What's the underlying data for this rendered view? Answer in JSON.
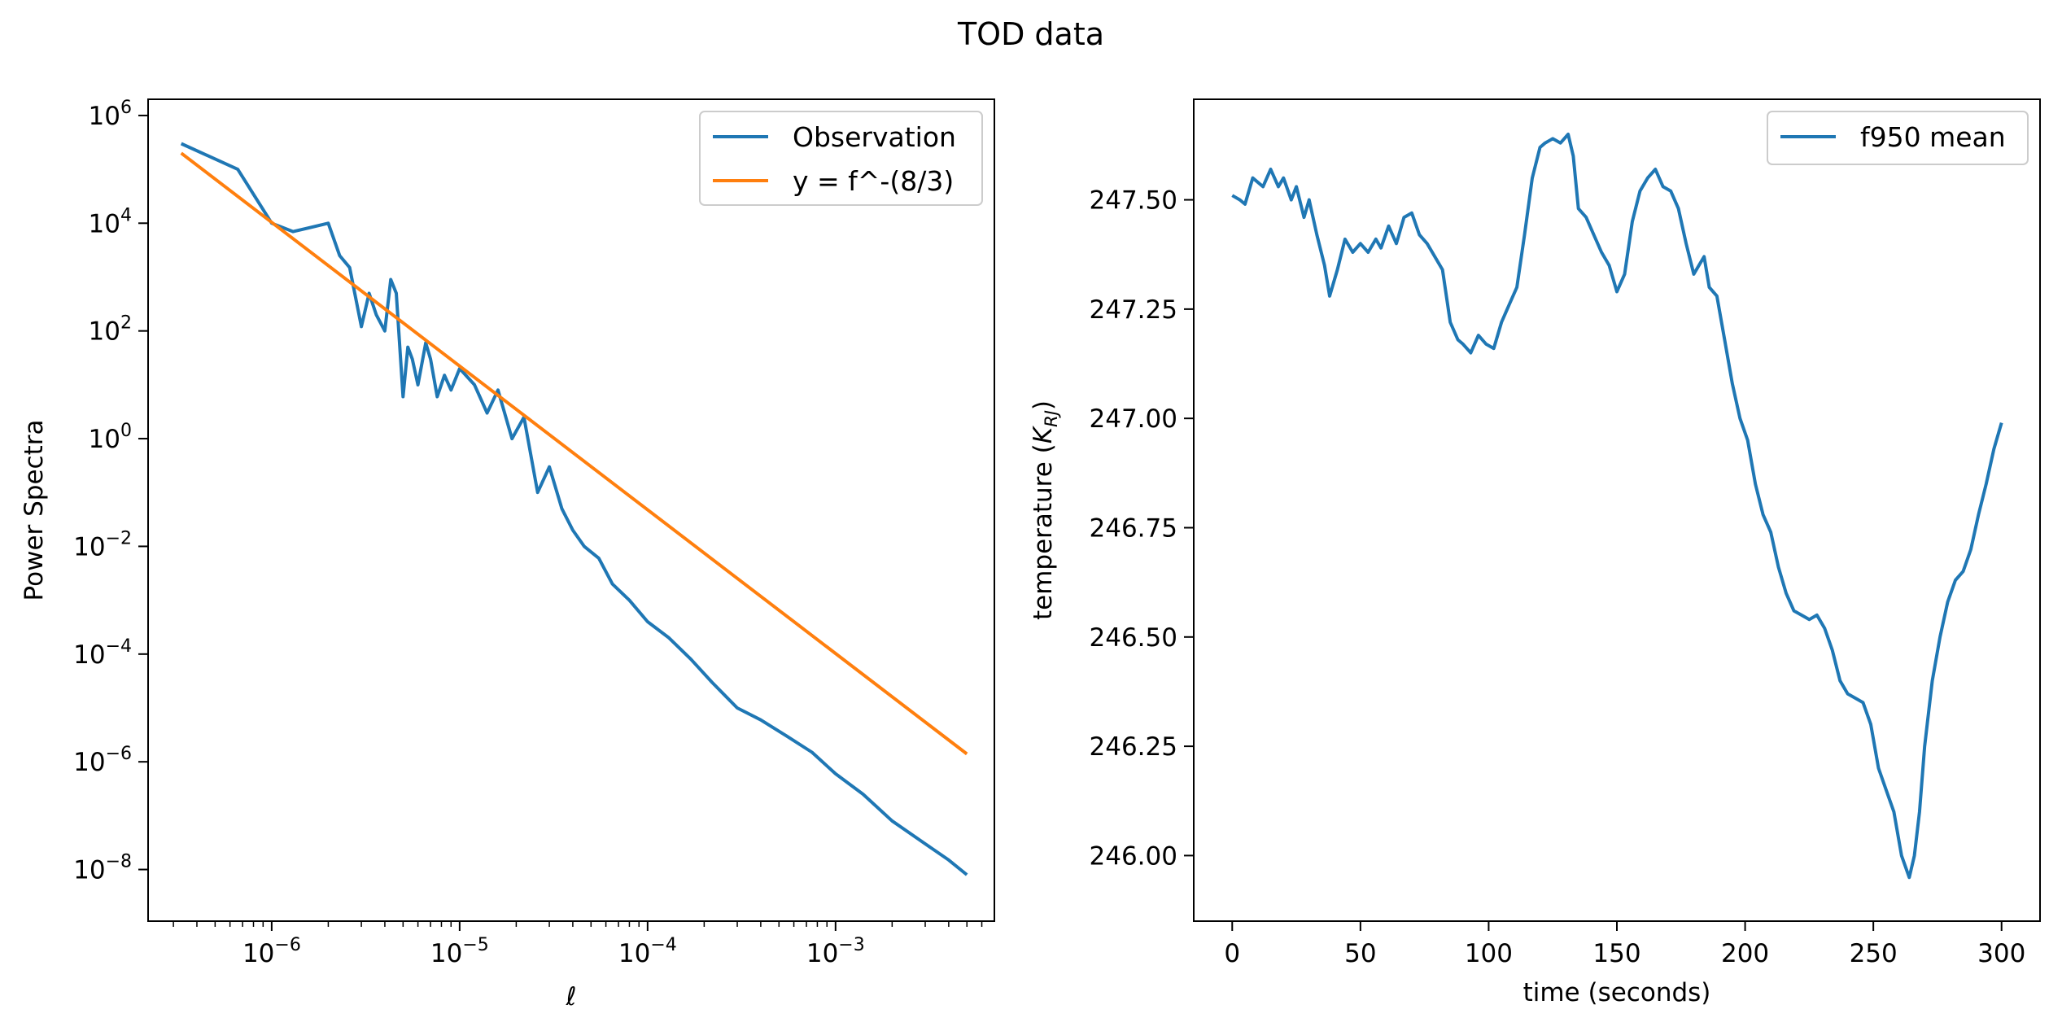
{
  "figure": {
    "title": "TOD data"
  },
  "colors": {
    "observation": "#1f77b4",
    "fit": "#ff7f0e",
    "axes": "#000000"
  },
  "chart_data": [
    {
      "type": "line",
      "xscale": "log",
      "yscale": "log",
      "xlim": [
        2.2e-07,
        0.007
      ],
      "ylim": [
        1.1e-09,
        2000000.0
      ],
      "xlabel": "ℓ",
      "ylabel": "Power Spectra",
      "xticks": [
        1e-06,
        1e-05,
        0.0001,
        0.001
      ],
      "xtick_labels": [
        {
          "base": "10",
          "exp": "−6"
        },
        {
          "base": "10",
          "exp": "−5"
        },
        {
          "base": "10",
          "exp": "−4"
        },
        {
          "base": "10",
          "exp": "−3"
        }
      ],
      "yticks": [
        1e-08,
        1e-06,
        0.0001,
        0.01,
        1,
        100.0,
        10000.0,
        1000000.0
      ],
      "ytick_labels": [
        {
          "base": "10",
          "exp": "−8"
        },
        {
          "base": "10",
          "exp": "−6"
        },
        {
          "base": "10",
          "exp": "−4"
        },
        {
          "base": "10",
          "exp": "−2"
        },
        {
          "base": "10",
          "exp": "0"
        },
        {
          "base": "10",
          "exp": "2"
        },
        {
          "base": "10",
          "exp": "4"
        },
        {
          "base": "10",
          "exp": "6"
        }
      ],
      "legend_position": "top-right",
      "series": [
        {
          "name": "Observation",
          "color": "#1f77b4",
          "x": [
            3.3e-07,
            6.6e-07,
            1e-06,
            1.3e-06,
            2e-06,
            2.3e-06,
            2.6e-06,
            3e-06,
            3.3e-06,
            3.6e-06,
            4e-06,
            4.3e-06,
            4.6e-06,
            5e-06,
            5.3e-06,
            5.6e-06,
            6e-06,
            6.6e-06,
            7e-06,
            7.6e-06,
            8.3e-06,
            9e-06,
            1e-05,
            1.2e-05,
            1.4e-05,
            1.6e-05,
            1.9e-05,
            2.2e-05,
            2.6e-05,
            3e-05,
            3.5e-05,
            4e-05,
            4.6e-05,
            5.5e-05,
            6.5e-05,
            8e-05,
            0.0001,
            0.00013,
            0.00017,
            0.00022,
            0.0003,
            0.0004,
            0.00055,
            0.00075,
            0.001,
            0.0014,
            0.002,
            0.003,
            0.004,
            0.005
          ],
          "y": [
            300000.0,
            100000.0,
            10000.0,
            7000.0,
            10000.0,
            2500.0,
            1500.0,
            120.0,
            500.0,
            200.0,
            100.0,
            900.0,
            500.0,
            6,
            50,
            30,
            10,
            60,
            30,
            6,
            15,
            8,
            20,
            10,
            3,
            8,
            1,
            2.5,
            0.1,
            0.3,
            0.05,
            0.02,
            0.01,
            0.006,
            0.002,
            0.001,
            0.0004,
            0.0002,
            8e-05,
            3e-05,
            1e-05,
            6e-06,
            3e-06,
            1.5e-06,
            6e-07,
            2.5e-07,
            8e-08,
            3e-08,
            1.5e-08,
            8e-09
          ]
        },
        {
          "name": "y = f^-(8/3)",
          "color": "#ff7f0e",
          "x": [
            3.3e-07,
            0.005
          ],
          "y": [
            200000.0,
            1.4e-06
          ]
        }
      ]
    },
    {
      "type": "line",
      "xlim": [
        -15,
        315
      ],
      "ylim": [
        245.85,
        247.73
      ],
      "xlabel": "time (seconds)",
      "ylabel": "temperature (",
      "ylabel_math": "K",
      "ylabel_sub": "RJ",
      "ylabel_close": ")",
      "xticks": [
        0,
        50,
        100,
        150,
        200,
        250,
        300
      ],
      "xtick_labels": [
        "0",
        "50",
        "100",
        "150",
        "200",
        "250",
        "300"
      ],
      "yticks": [
        246.0,
        246.25,
        246.5,
        246.75,
        247.0,
        247.25,
        247.5
      ],
      "ytick_labels": [
        "246.00",
        "246.25",
        "246.50",
        "246.75",
        "247.00",
        "247.25",
        "247.50"
      ],
      "legend_position": "top-right",
      "series": [
        {
          "name": "f950 mean",
          "color": "#1f77b4",
          "x": [
            0,
            3,
            5,
            8,
            12,
            15,
            18,
            20,
            23,
            25,
            28,
            30,
            33,
            36,
            38,
            41,
            44,
            47,
            50,
            53,
            56,
            58,
            61,
            64,
            67,
            70,
            73,
            76,
            78,
            82,
            85,
            88,
            90,
            93,
            96,
            99,
            102,
            105,
            108,
            111,
            114,
            117,
            120,
            122,
            125,
            128,
            131,
            133,
            135,
            138,
            141,
            144,
            147,
            150,
            153,
            156,
            159,
            162,
            165,
            168,
            171,
            174,
            177,
            180,
            182,
            184,
            186,
            189,
            192,
            195,
            198,
            201,
            204,
            207,
            210,
            213,
            216,
            219,
            222,
            225,
            228,
            231,
            234,
            237,
            240,
            243,
            246,
            249,
            252,
            255,
            258,
            261,
            264,
            266,
            268,
            270,
            273,
            276,
            279,
            282,
            285,
            288,
            291,
            294,
            297,
            300
          ],
          "y": [
            247.51,
            247.5,
            247.49,
            247.55,
            247.53,
            247.57,
            247.53,
            247.55,
            247.5,
            247.53,
            247.46,
            247.5,
            247.42,
            247.35,
            247.28,
            247.34,
            247.41,
            247.38,
            247.4,
            247.38,
            247.41,
            247.39,
            247.44,
            247.4,
            247.46,
            247.47,
            247.42,
            247.4,
            247.38,
            247.34,
            247.22,
            247.18,
            247.17,
            247.15,
            247.19,
            247.17,
            247.16,
            247.22,
            247.26,
            247.3,
            247.42,
            247.55,
            247.62,
            247.63,
            247.64,
            247.63,
            247.65,
            247.6,
            247.48,
            247.46,
            247.42,
            247.38,
            247.35,
            247.29,
            247.33,
            247.45,
            247.52,
            247.55,
            247.57,
            247.53,
            247.52,
            247.48,
            247.4,
            247.33,
            247.35,
            247.37,
            247.3,
            247.28,
            247.18,
            247.08,
            247.0,
            246.95,
            246.85,
            246.78,
            246.74,
            246.66,
            246.6,
            246.56,
            246.55,
            246.54,
            246.55,
            246.52,
            246.47,
            246.4,
            246.37,
            246.36,
            246.35,
            246.3,
            246.2,
            246.15,
            246.1,
            246.0,
            245.95,
            246.0,
            246.1,
            246.25,
            246.4,
            246.5,
            246.58,
            246.63,
            246.65,
            246.7,
            246.78,
            246.85,
            246.93,
            246.99
          ]
        }
      ]
    }
  ]
}
